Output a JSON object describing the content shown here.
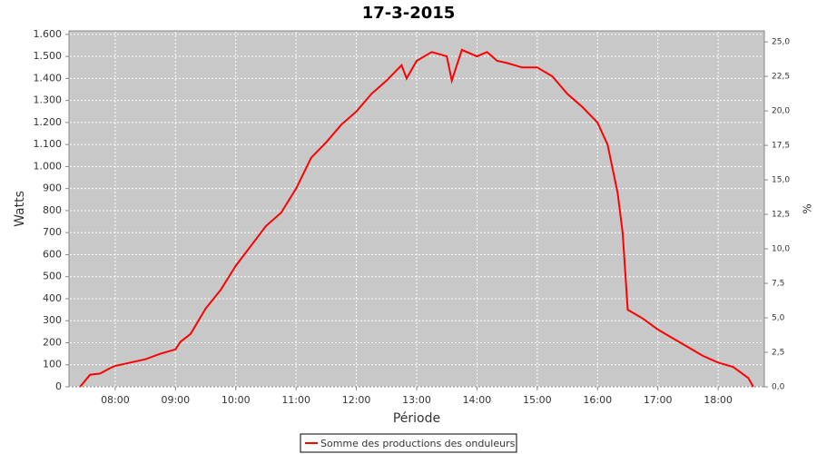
{
  "chart_data": {
    "type": "line",
    "title": "17-3-2015",
    "x_label": "Période",
    "y_label": "Watts",
    "y2_label": "%",
    "x": [
      "07:25",
      "07:35",
      "07:45",
      "07:55",
      "08:00",
      "08:15",
      "08:30",
      "08:45",
      "09:00",
      "09:05",
      "09:15",
      "09:30",
      "09:45",
      "10:00",
      "10:15",
      "10:30",
      "10:45",
      "11:00",
      "11:15",
      "11:30",
      "11:45",
      "12:00",
      "12:15",
      "12:30",
      "12:45",
      "12:50",
      "13:00",
      "13:15",
      "13:30",
      "13:35",
      "13:45",
      "14:00",
      "14:10",
      "14:20",
      "14:30",
      "14:45",
      "15:00",
      "15:15",
      "15:30",
      "15:45",
      "16:00",
      "16:10",
      "16:20",
      "16:25",
      "16:30",
      "16:45",
      "17:00",
      "17:15",
      "17:30",
      "17:45",
      "18:00",
      "18:15",
      "18:30",
      "18:35"
    ],
    "series": [
      {
        "name": "Somme des productions des onduleurs",
        "color": "#ff0000",
        "values": [
          0,
          55,
          60,
          85,
          95,
          110,
          125,
          150,
          170,
          205,
          240,
          355,
          440,
          550,
          640,
          730,
          790,
          900,
          1040,
          1110,
          1190,
          1250,
          1330,
          1390,
          1460,
          1400,
          1480,
          1520,
          1500,
          1390,
          1530,
          1500,
          1520,
          1480,
          1470,
          1450,
          1450,
          1410,
          1330,
          1270,
          1200,
          1100,
          880,
          700,
          350,
          310,
          260,
          220,
          180,
          140,
          110,
          90,
          40,
          0
        ]
      }
    ],
    "xlim": [
      "07:14",
      "18:46"
    ],
    "xticks": [
      "08:00",
      "09:00",
      "10:00",
      "11:00",
      "12:00",
      "13:00",
      "14:00",
      "15:00",
      "16:00",
      "17:00",
      "18:00"
    ],
    "ylim": [
      0,
      1616
    ],
    "yticks": [
      0,
      100,
      200,
      300,
      400,
      500,
      600,
      700,
      800,
      900,
      {
        "value": 1000,
        "label": "1.000"
      },
      {
        "value": 1100,
        "label": "1.100"
      },
      {
        "value": 1200,
        "label": "1.200"
      },
      {
        "value": 1300,
        "label": "1.300"
      },
      {
        "value": 1400,
        "label": "1.400"
      },
      {
        "value": 1500,
        "label": "1.500"
      },
      {
        "value": 1600,
        "label": "1.600"
      }
    ],
    "y2lim": [
      0,
      25.8
    ],
    "y2ticks": [
      {
        "value": 0,
        "label": "0,0"
      },
      {
        "value": 2.5,
        "label": "2,5"
      },
      {
        "value": 5,
        "label": "5,0"
      },
      {
        "value": 7.5,
        "label": "7,5"
      },
      {
        "value": 10,
        "label": "10,0"
      },
      {
        "value": 12.5,
        "label": "12,5"
      },
      {
        "value": 15,
        "label": "15,0"
      },
      {
        "value": 17.5,
        "label": "17,5"
      },
      {
        "value": 20,
        "label": "20,0"
      },
      {
        "value": 22.5,
        "label": "22,5"
      },
      {
        "value": 25,
        "label": "25,0"
      }
    ],
    "grid": true
  }
}
